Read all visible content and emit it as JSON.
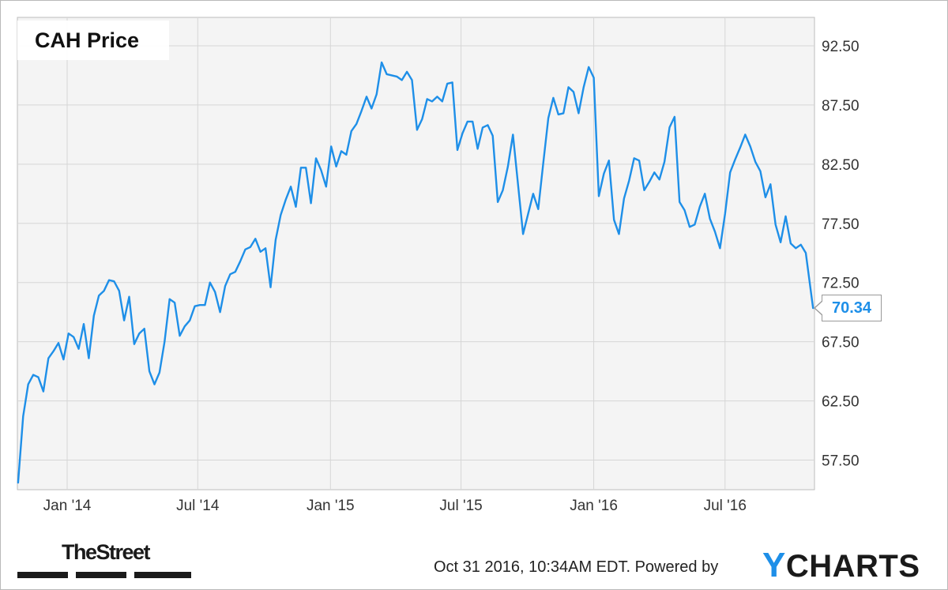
{
  "chart_data": {
    "type": "line",
    "title": "CAH Price",
    "series": [
      {
        "name": "CAH Price",
        "color": "#1e8fe8",
        "last_value_label": "70.34",
        "points": [
          [
            "2013-10-25",
            55.6
          ],
          [
            "2013-11-01",
            61.2
          ],
          [
            "2013-11-08",
            63.9
          ],
          [
            "2013-11-15",
            64.7
          ],
          [
            "2013-11-22",
            64.5
          ],
          [
            "2013-11-29",
            63.3
          ],
          [
            "2013-12-06",
            66.1
          ],
          [
            "2013-12-13",
            66.7
          ],
          [
            "2013-12-20",
            67.4
          ],
          [
            "2013-12-27",
            66.0
          ],
          [
            "2014-01-03",
            68.2
          ],
          [
            "2014-01-10",
            67.9
          ],
          [
            "2014-01-17",
            66.9
          ],
          [
            "2014-01-24",
            69.0
          ],
          [
            "2014-01-31",
            66.1
          ],
          [
            "2014-02-07",
            69.7
          ],
          [
            "2014-02-14",
            71.4
          ],
          [
            "2014-02-21",
            71.8
          ],
          [
            "2014-02-28",
            72.7
          ],
          [
            "2014-03-07",
            72.6
          ],
          [
            "2014-03-14",
            71.8
          ],
          [
            "2014-03-21",
            69.3
          ],
          [
            "2014-03-28",
            71.3
          ],
          [
            "2014-04-04",
            67.3
          ],
          [
            "2014-04-11",
            68.2
          ],
          [
            "2014-04-18",
            68.6
          ],
          [
            "2014-04-25",
            65.0
          ],
          [
            "2014-05-02",
            63.9
          ],
          [
            "2014-05-09",
            64.9
          ],
          [
            "2014-05-16",
            67.5
          ],
          [
            "2014-05-23",
            71.1
          ],
          [
            "2014-05-30",
            70.8
          ],
          [
            "2014-06-06",
            68.0
          ],
          [
            "2014-06-13",
            68.8
          ],
          [
            "2014-06-20",
            69.3
          ],
          [
            "2014-06-27",
            70.5
          ],
          [
            "2014-07-04",
            70.6
          ],
          [
            "2014-07-11",
            70.6
          ],
          [
            "2014-07-18",
            72.5
          ],
          [
            "2014-07-25",
            71.7
          ],
          [
            "2014-08-01",
            70.0
          ],
          [
            "2014-08-08",
            72.2
          ],
          [
            "2014-08-15",
            73.2
          ],
          [
            "2014-08-22",
            73.4
          ],
          [
            "2014-08-29",
            74.3
          ],
          [
            "2014-09-05",
            75.3
          ],
          [
            "2014-09-12",
            75.5
          ],
          [
            "2014-09-19",
            76.2
          ],
          [
            "2014-09-26",
            75.1
          ],
          [
            "2014-10-03",
            75.4
          ],
          [
            "2014-10-10",
            72.1
          ],
          [
            "2014-10-17",
            76.1
          ],
          [
            "2014-10-24",
            78.2
          ],
          [
            "2014-10-31",
            79.5
          ],
          [
            "2014-11-07",
            80.6
          ],
          [
            "2014-11-14",
            78.9
          ],
          [
            "2014-11-21",
            82.2
          ],
          [
            "2014-11-28",
            82.2
          ],
          [
            "2014-12-05",
            79.2
          ],
          [
            "2014-12-12",
            83.0
          ],
          [
            "2014-12-19",
            82.0
          ],
          [
            "2014-12-26",
            80.6
          ],
          [
            "2015-01-02",
            84.0
          ],
          [
            "2015-01-09",
            82.3
          ],
          [
            "2015-01-16",
            83.6
          ],
          [
            "2015-01-23",
            83.3
          ],
          [
            "2015-01-30",
            85.3
          ],
          [
            "2015-02-06",
            85.9
          ],
          [
            "2015-02-13",
            87.0
          ],
          [
            "2015-02-20",
            88.2
          ],
          [
            "2015-02-27",
            87.2
          ],
          [
            "2015-03-06",
            88.4
          ],
          [
            "2015-03-13",
            91.1
          ],
          [
            "2015-03-20",
            90.1
          ],
          [
            "2015-03-27",
            90.0
          ],
          [
            "2015-04-03",
            89.9
          ],
          [
            "2015-04-10",
            89.6
          ],
          [
            "2015-04-17",
            90.3
          ],
          [
            "2015-04-24",
            89.6
          ],
          [
            "2015-05-01",
            85.4
          ],
          [
            "2015-05-08",
            86.3
          ],
          [
            "2015-05-15",
            88.0
          ],
          [
            "2015-05-22",
            87.8
          ],
          [
            "2015-05-29",
            88.2
          ],
          [
            "2015-06-05",
            87.8
          ],
          [
            "2015-06-12",
            89.3
          ],
          [
            "2015-06-19",
            89.4
          ],
          [
            "2015-06-26",
            83.7
          ],
          [
            "2015-07-03",
            85.1
          ],
          [
            "2015-07-10",
            86.1
          ],
          [
            "2015-07-17",
            86.1
          ],
          [
            "2015-07-24",
            83.8
          ],
          [
            "2015-07-31",
            85.6
          ],
          [
            "2015-08-07",
            85.8
          ],
          [
            "2015-08-14",
            84.9
          ],
          [
            "2015-08-21",
            79.3
          ],
          [
            "2015-08-28",
            80.3
          ],
          [
            "2015-09-04",
            82.3
          ],
          [
            "2015-09-11",
            85.0
          ],
          [
            "2015-09-18",
            80.8
          ],
          [
            "2015-09-25",
            76.6
          ],
          [
            "2015-10-02",
            78.3
          ],
          [
            "2015-10-09",
            80.0
          ],
          [
            "2015-10-16",
            78.7
          ],
          [
            "2015-10-23",
            82.6
          ],
          [
            "2015-10-30",
            86.4
          ],
          [
            "2015-11-06",
            88.1
          ],
          [
            "2015-11-13",
            86.7
          ],
          [
            "2015-11-20",
            86.8
          ],
          [
            "2015-11-27",
            89.0
          ],
          [
            "2015-12-04",
            88.6
          ],
          [
            "2015-12-11",
            86.8
          ],
          [
            "2015-12-18",
            89.0
          ],
          [
            "2015-12-25",
            90.7
          ],
          [
            "2016-01-01",
            89.8
          ],
          [
            "2016-01-08",
            79.8
          ],
          [
            "2016-01-15",
            81.7
          ],
          [
            "2016-01-22",
            82.8
          ],
          [
            "2016-01-29",
            77.8
          ],
          [
            "2016-02-05",
            76.6
          ],
          [
            "2016-02-12",
            79.6
          ],
          [
            "2016-02-19",
            81.1
          ],
          [
            "2016-02-26",
            83.0
          ],
          [
            "2016-03-04",
            82.8
          ],
          [
            "2016-03-11",
            80.3
          ],
          [
            "2016-03-18",
            81.0
          ],
          [
            "2016-03-25",
            81.8
          ],
          [
            "2016-04-01",
            81.2
          ],
          [
            "2016-04-08",
            82.7
          ],
          [
            "2016-04-15",
            85.6
          ],
          [
            "2016-04-22",
            86.5
          ],
          [
            "2016-04-29",
            79.3
          ],
          [
            "2016-05-06",
            78.6
          ],
          [
            "2016-05-13",
            77.2
          ],
          [
            "2016-05-20",
            77.4
          ],
          [
            "2016-05-27",
            78.9
          ],
          [
            "2016-06-03",
            80.0
          ],
          [
            "2016-06-10",
            77.9
          ],
          [
            "2016-06-17",
            76.8
          ],
          [
            "2016-06-24",
            75.4
          ],
          [
            "2016-07-01",
            78.3
          ],
          [
            "2016-07-08",
            81.8
          ],
          [
            "2016-07-15",
            82.9
          ],
          [
            "2016-07-22",
            83.9
          ],
          [
            "2016-07-29",
            85.0
          ],
          [
            "2016-08-05",
            84.0
          ],
          [
            "2016-08-12",
            82.7
          ],
          [
            "2016-08-19",
            81.9
          ],
          [
            "2016-08-26",
            79.7
          ],
          [
            "2016-09-02",
            80.8
          ],
          [
            "2016-09-09",
            77.4
          ],
          [
            "2016-09-16",
            75.9
          ],
          [
            "2016-09-23",
            78.1
          ],
          [
            "2016-09-30",
            75.8
          ],
          [
            "2016-10-07",
            75.4
          ],
          [
            "2016-10-14",
            75.7
          ],
          [
            "2016-10-21",
            75.0
          ],
          [
            "2016-10-31",
            70.34
          ]
        ]
      }
    ],
    "y_axis": {
      "min": 55.0,
      "max": 94.9,
      "ticks": [
        92.5,
        87.5,
        82.5,
        77.5,
        72.5,
        67.5,
        62.5,
        57.5
      ],
      "tick_labels": [
        "92.50",
        "87.50",
        "82.50",
        "77.50",
        "72.50",
        "67.50",
        "62.50",
        "57.50"
      ],
      "side": "right"
    },
    "x_axis": {
      "range": [
        "2013-10-24",
        "2016-11-02"
      ],
      "ticks": [
        {
          "date": "2014-01-01",
          "label": "Jan '14"
        },
        {
          "date": "2014-07-01",
          "label": "Jul '14"
        },
        {
          "date": "2015-01-01",
          "label": "Jan '15"
        },
        {
          "date": "2015-07-01",
          "label": "Jul '15"
        },
        {
          "date": "2016-01-01",
          "label": "Jan '16"
        },
        {
          "date": "2016-07-01",
          "label": "Jul '16"
        }
      ]
    },
    "grid": true
  },
  "branding": {
    "publisher": "TheStreet",
    "timestamp": "Oct 31 2016, 10:34AM EDT.",
    "powered_by": "Powered by",
    "provider_y": "Y",
    "provider_rest": "CHARTS",
    "provider_color": "#1e8fe8"
  }
}
